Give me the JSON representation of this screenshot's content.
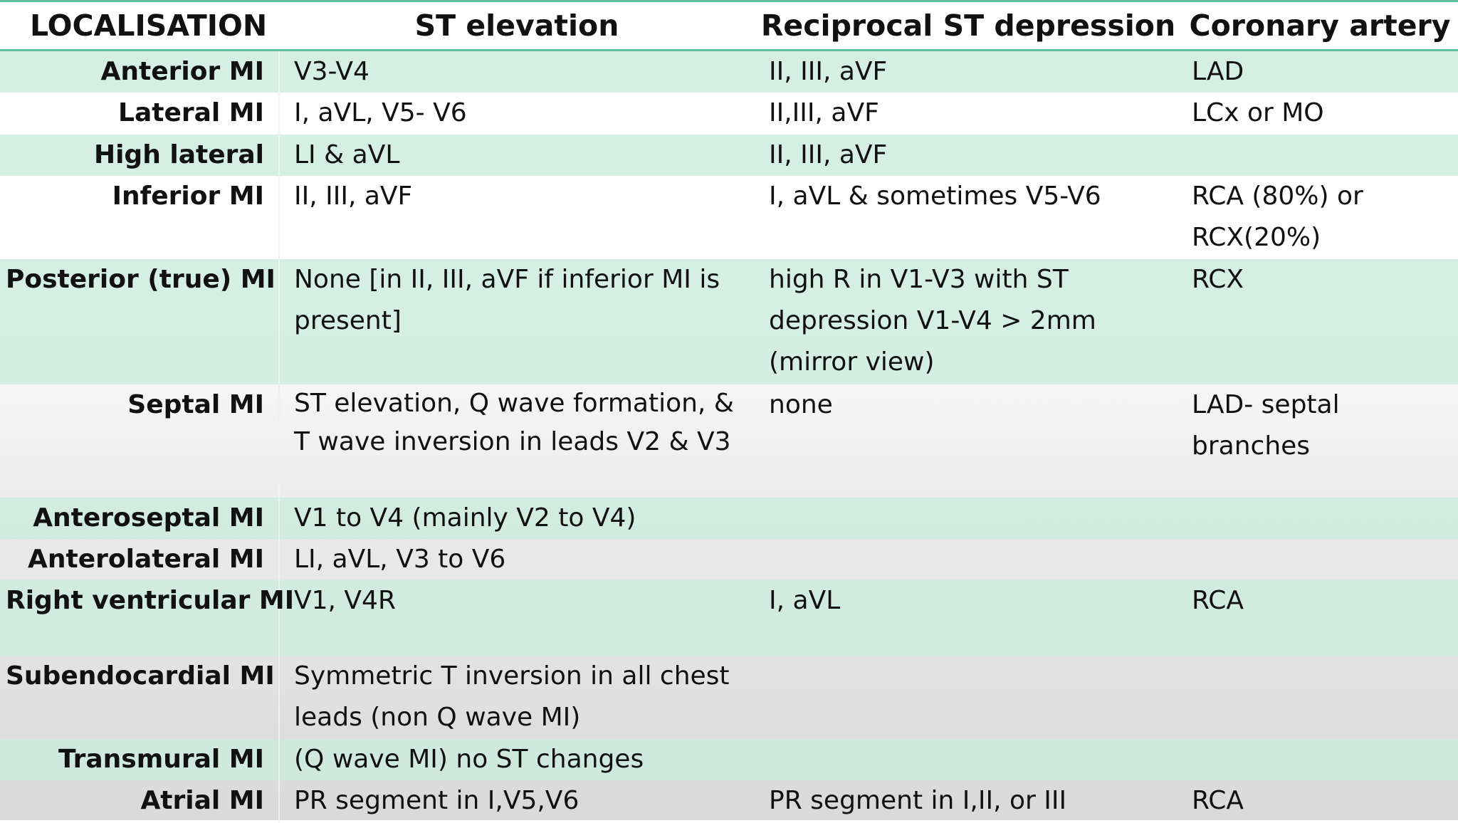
{
  "table": {
    "headers": [
      "LOCALISATION",
      "ST elevation",
      "Reciprocal ST depression",
      "Coronary artery"
    ],
    "rows": [
      {
        "localisation": "Anterior MI",
        "st_elevation": "V3-V4",
        "reciprocal": "II, III, aVF",
        "coronary": "LAD"
      },
      {
        "localisation": "Lateral MI",
        "st_elevation": "I, aVL, V5- V6",
        "reciprocal": "II,III, aVF",
        "coronary": "LCx or MO"
      },
      {
        "localisation": "High lateral",
        "st_elevation": "LI & aVL",
        "reciprocal": "II, III, aVF",
        "coronary": ""
      },
      {
        "localisation": "Inferior MI",
        "st_elevation": "II, III, aVF",
        "reciprocal": "I, aVL & sometimes V5-V6",
        "coronary": "RCA (80%) or RCX(20%)"
      },
      {
        "localisation": "Posterior (true) MI",
        "st_elevation": "None [in II, III, aVF if inferior MI is present]",
        "reciprocal": "high R in V1-V3 with ST depression V1-V4 > 2mm (mirror view)",
        "coronary": "RCX"
      },
      {
        "localisation": "Septal MI",
        "st_elevation": "ST elevation, Q wave formation, & T wave inversion in leads V2 & V3",
        "reciprocal": "none",
        "coronary": "LAD- septal branches"
      },
      {
        "localisation": "Anteroseptal MI",
        "st_elevation": "V1 to V4 (mainly V2 to V4)",
        "reciprocal": "",
        "coronary": ""
      },
      {
        "localisation": "Anterolateral MI",
        "st_elevation": "LI, aVL, V3 to V6",
        "reciprocal": "",
        "coronary": ""
      },
      {
        "localisation": "Right ventricular MI",
        "st_elevation": "V1, V4R",
        "reciprocal": "I, aVL",
        "coronary": "RCA"
      },
      {
        "localisation": "Subendocardial MI",
        "st_elevation": "Symmetric T inversion in all chest leads (non Q wave MI)",
        "reciprocal": "",
        "coronary": ""
      },
      {
        "localisation": "Transmural MI",
        "st_elevation": "(Q wave MI) no ST changes",
        "reciprocal": "",
        "coronary": ""
      },
      {
        "localisation": "Atrial MI",
        "st_elevation": "PR segment in I,V5,V6",
        "reciprocal": "PR segment in I,II, or III",
        "coronary": "RCA"
      }
    ]
  },
  "colors": {
    "accent_rule": "#5fbf9a",
    "row_shade": "#cceCde",
    "text": "#111111"
  }
}
